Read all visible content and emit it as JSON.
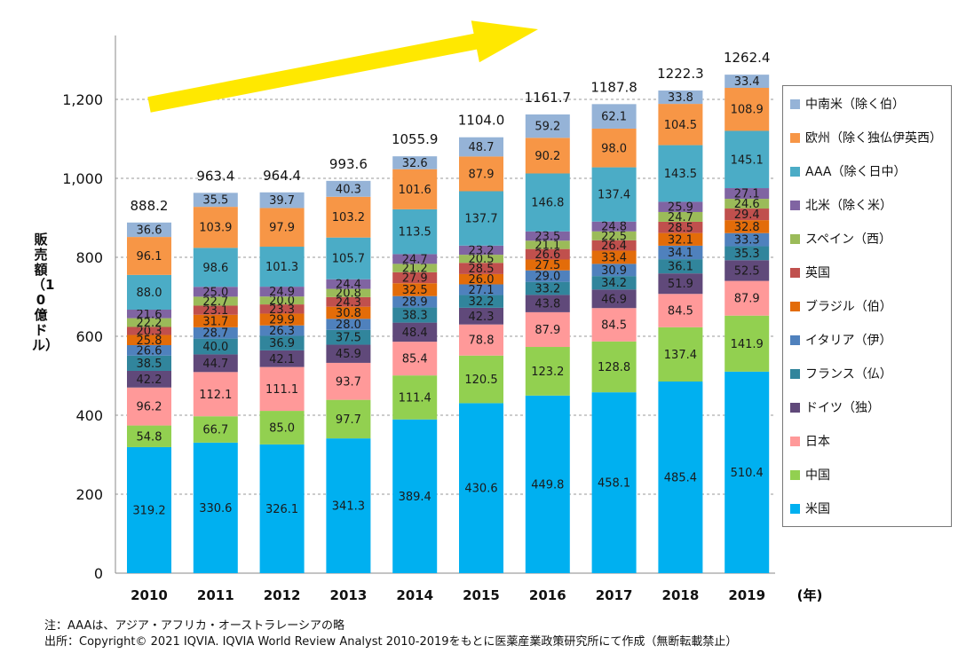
{
  "chart_data": {
    "type": "bar",
    "stacked": true,
    "ylabel": "販売額（10億ドル）",
    "xlabel_unit": "(年)",
    "ylim": [
      0,
      1300
    ],
    "yticks": [
      0,
      200,
      400,
      600,
      800,
      "1,000",
      "1,200"
    ],
    "grid": true,
    "legend_position": "right",
    "categories": [
      "2010",
      "2011",
      "2012",
      "2013",
      "2014",
      "2015",
      "2016",
      "2017",
      "2018",
      "2019"
    ],
    "totals": [
      "888.2",
      "963.4",
      "964.4",
      "993.6",
      "1055.9",
      "1104.0",
      "1161.7",
      "1187.8",
      "1222.3",
      "1262.4"
    ],
    "series": [
      {
        "name": "米国",
        "color": "#00B0F0",
        "values": [
          319.2,
          330.6,
          326.1,
          341.3,
          389.4,
          430.6,
          449.8,
          458.1,
          485.4,
          510.4
        ]
      },
      {
        "name": "中国",
        "color": "#92D050",
        "values": [
          54.8,
          66.7,
          85.0,
          97.7,
          111.4,
          120.5,
          123.2,
          128.8,
          137.4,
          141.9
        ]
      },
      {
        "name": "日本",
        "color": "#FF9999",
        "values": [
          96.2,
          112.1,
          111.1,
          93.7,
          85.4,
          78.8,
          87.9,
          84.5,
          84.5,
          87.9
        ]
      },
      {
        "name": "ドイツ（独）",
        "color": "#60497A",
        "values": [
          42.2,
          44.7,
          42.1,
          45.9,
          48.4,
          42.3,
          43.8,
          46.9,
          51.9,
          52.5
        ]
      },
      {
        "name": "フランス（仏）",
        "color": "#31859C",
        "values": [
          38.5,
          40.0,
          36.9,
          37.5,
          38.3,
          32.2,
          33.2,
          34.2,
          36.1,
          35.3
        ]
      },
      {
        "name": "イタリア（伊）",
        "color": "#4F81BD",
        "values": [
          26.6,
          28.7,
          26.3,
          28.0,
          28.9,
          27.1,
          29.0,
          30.9,
          34.1,
          33.3
        ]
      },
      {
        "name": "ブラジル（伯）",
        "color": "#E36C09",
        "values": [
          25.8,
          31.7,
          29.9,
          30.8,
          32.5,
          26.0,
          27.5,
          33.4,
          32.1,
          32.8
        ]
      },
      {
        "name": "英国",
        "color": "#C0504D",
        "values": [
          20.3,
          23.1,
          23.3,
          24.3,
          27.9,
          28.5,
          26.6,
          26.4,
          28.5,
          29.4
        ]
      },
      {
        "name": "スペイン（西）",
        "color": "#9BBB59",
        "values": [
          22.2,
          22.7,
          20.0,
          20.8,
          21.2,
          20.5,
          21.1,
          22.5,
          24.7,
          24.6
        ]
      },
      {
        "name": "北米（除く米）",
        "color": "#8064A2",
        "values": [
          21.6,
          25.0,
          24.9,
          24.4,
          24.7,
          23.2,
          23.5,
          24.8,
          25.9,
          27.1
        ]
      },
      {
        "name": "AAA（除く日中）",
        "color": "#4BACC6",
        "values": [
          88.0,
          98.6,
          101.3,
          105.7,
          113.5,
          137.7,
          146.8,
          137.4,
          143.5,
          145.1
        ]
      },
      {
        "name": "欧州（除く独仏伊英西）",
        "color": "#F79646",
        "values": [
          96.1,
          103.9,
          97.9,
          103.2,
          101.6,
          87.9,
          90.2,
          98.0,
          104.5,
          108.9
        ]
      },
      {
        "name": "中南米（除く伯）",
        "color": "#95B3D7",
        "values": [
          36.6,
          35.5,
          39.7,
          40.3,
          32.6,
          48.7,
          59.2,
          62.1,
          33.8,
          33.4
        ]
      }
    ]
  },
  "notes": {
    "line1": "注：AAAは、アジア・アフリカ・オーストラレーシアの略",
    "line2": "出所：Copyright© 2021 IQVIA. IQVIA World Review Analyst 2010-2019をもとに医薬産業政策研究所にて作成（無断転載禁止）"
  },
  "arrow_color": "#FFE800"
}
